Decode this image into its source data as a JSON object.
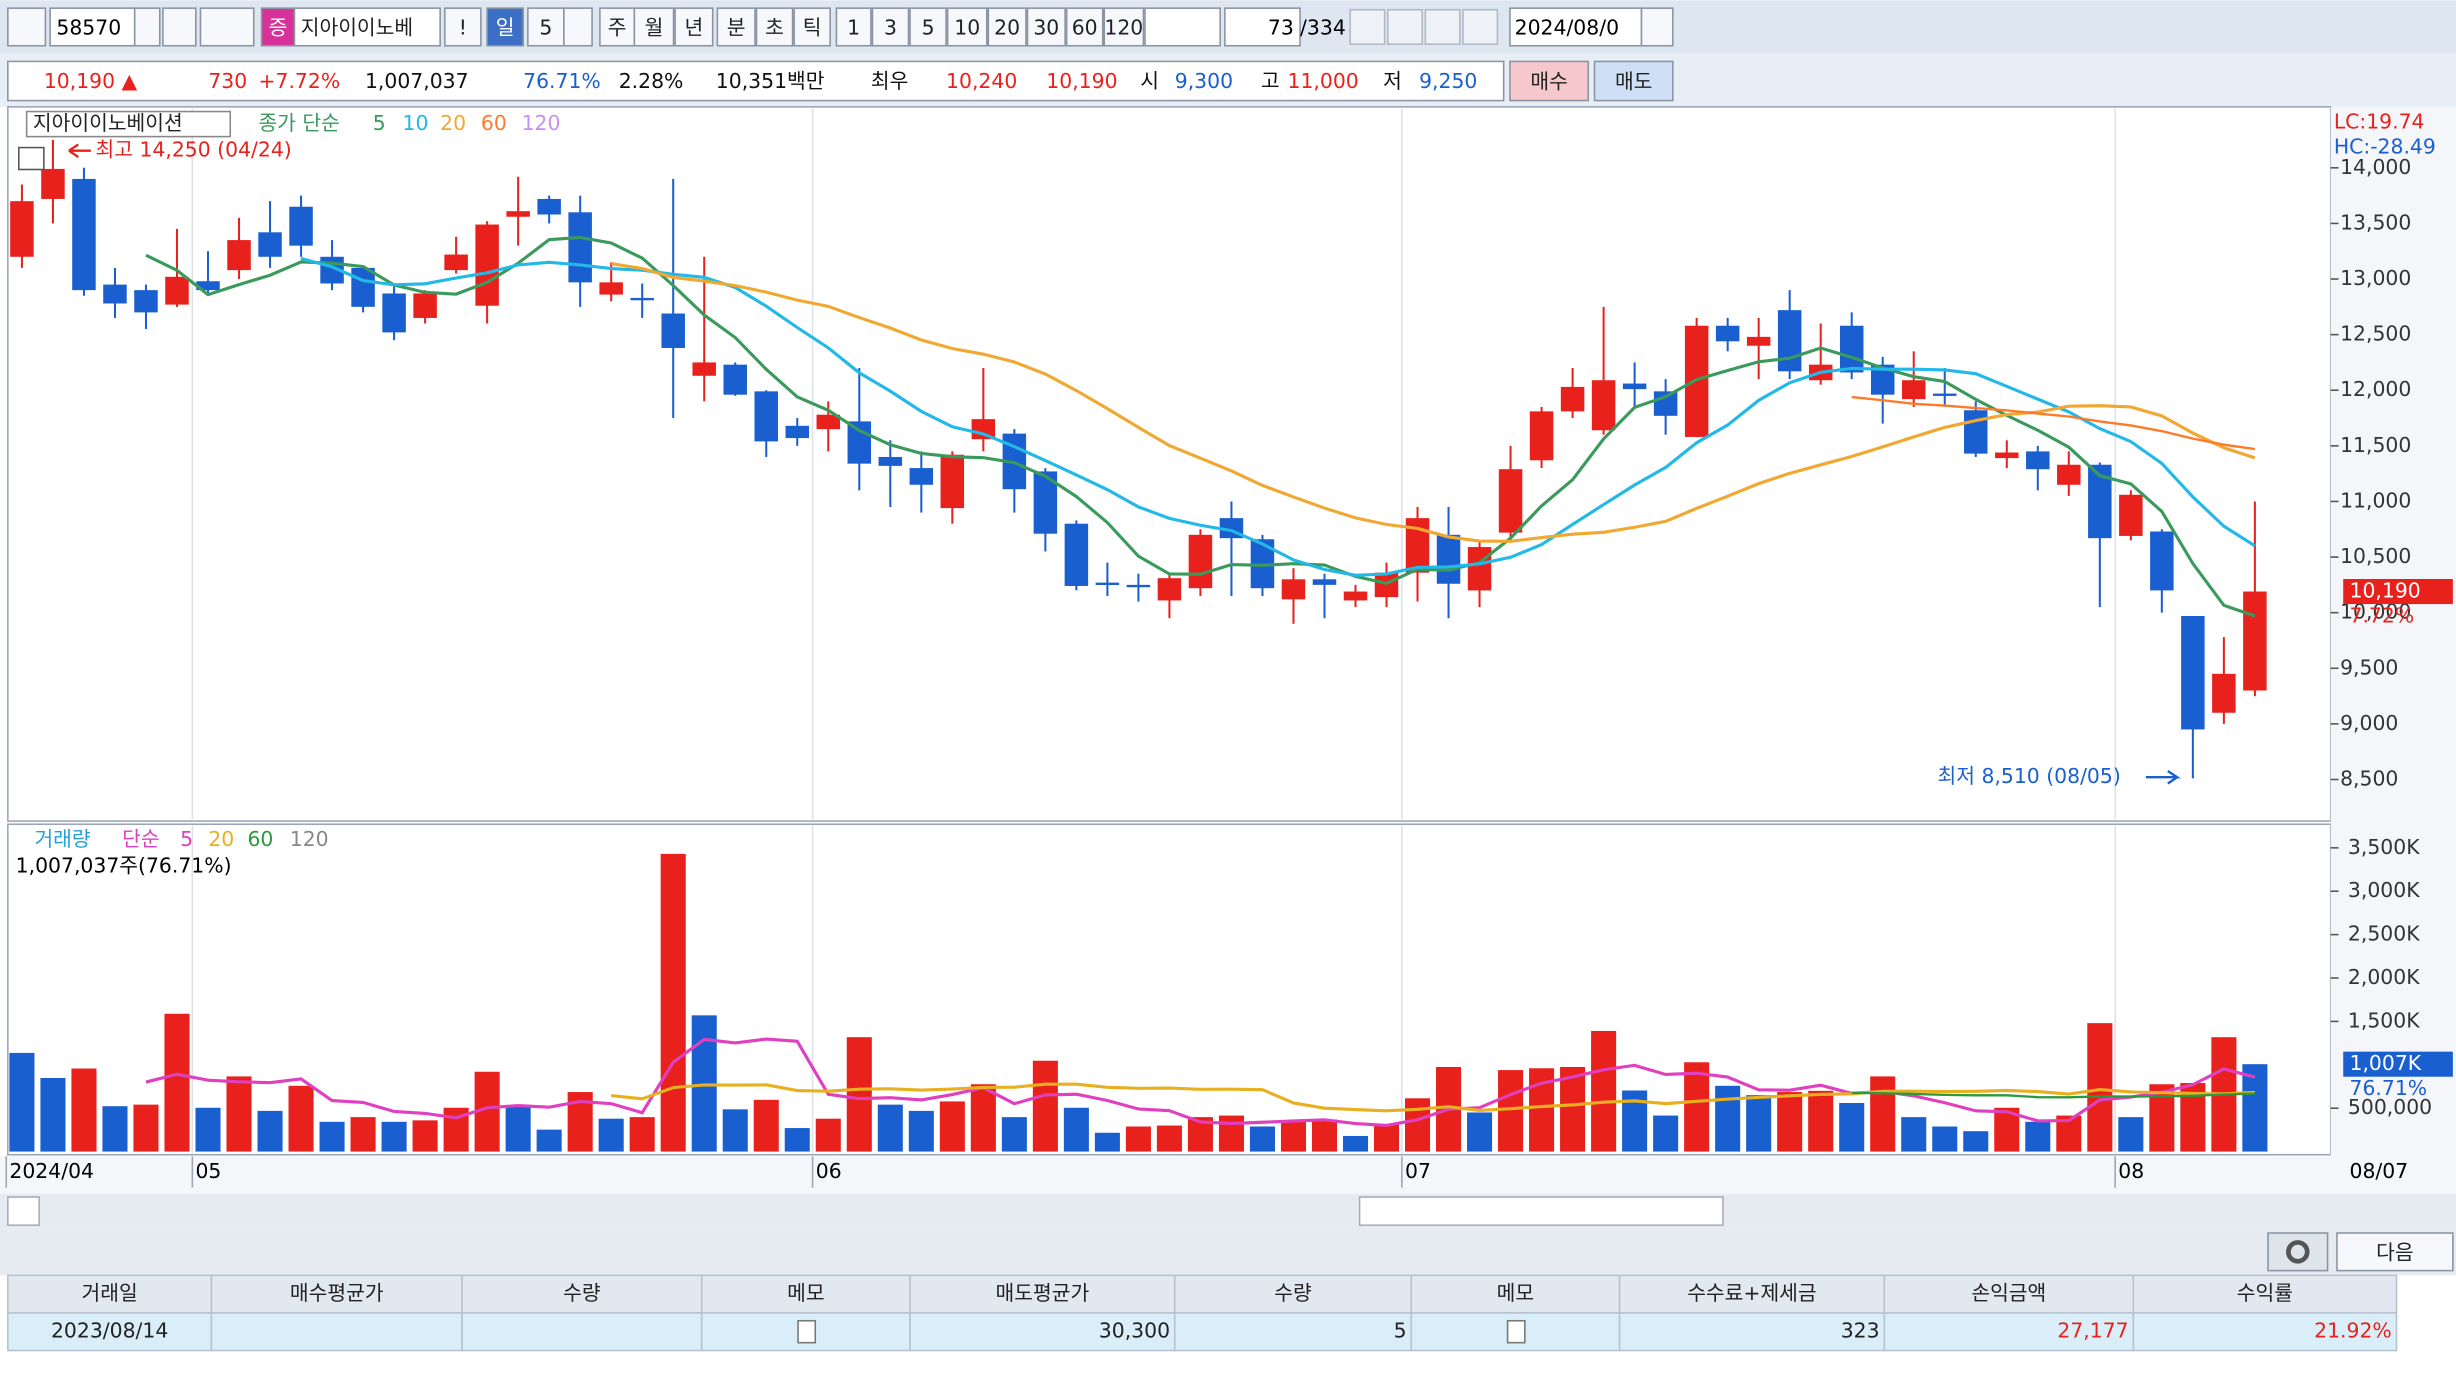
{
  "toolbar": {
    "code": "58570",
    "badge": "증",
    "name": "지아이이노베",
    "buttons": [
      "!",
      "일",
      "5",
      "주",
      "월",
      "년",
      "분",
      "초",
      "틱",
      "1",
      "3",
      "5",
      "10",
      "20",
      "30",
      "60",
      "120"
    ],
    "count": "73",
    "total": "/334",
    "date": "2024/08/0"
  },
  "quote": {
    "price": "10,190 ▲",
    "change": "730",
    "pct": "+7.72%",
    "volume": "1,007,037",
    "ratio": "76.71%",
    "turnover": "2.28%",
    "amount": "10,351백만",
    "best_label": "최우",
    "ask": "10,240",
    "bid": "10,190",
    "open_label": "시",
    "open": "9,300",
    "high_label": "고",
    "high": "11,000",
    "low_label": "저",
    "low": "9,250",
    "buy": "매수",
    "sell": "매도"
  },
  "chart_data": {
    "type": "candlestick",
    "title": "지아이이노베이션",
    "ma_label": "종가 단순",
    "ma": [
      {
        "period": 5,
        "color": "#3a9a5c"
      },
      {
        "period": 10,
        "color": "#22b8e8"
      },
      {
        "period": 20,
        "color": "#f0a830"
      },
      {
        "period": 60,
        "color": "#ff7a28"
      },
      {
        "period": 120,
        "color": "#c890f0"
      }
    ],
    "up_color": "#e8211c",
    "down_color": "#1a5fd0",
    "categories": [
      "2024/04",
      null,
      null,
      null,
      null,
      null,
      "05",
      null,
      null,
      null,
      null,
      null,
      null,
      null,
      null,
      null,
      null,
      null,
      null,
      null,
      null,
      null,
      null,
      null,
      null,
      null,
      "06",
      null,
      null,
      null,
      null,
      null,
      null,
      null,
      null,
      null,
      null,
      null,
      null,
      null,
      null,
      null,
      null,
      null,
      null,
      "07",
      null,
      null,
      null,
      null,
      null,
      null,
      null,
      null,
      null,
      null,
      null,
      null,
      null,
      null,
      null,
      null,
      null,
      null,
      null,
      null,
      null,
      null,
      "08",
      null,
      null,
      null,
      null
    ],
    "open": [
      13200,
      13720,
      13900,
      12950,
      12900,
      12770,
      12980,
      13080,
      13420,
      13650,
      13200,
      13100,
      12870,
      12650,
      13080,
      12760,
      13560,
      13720,
      13600,
      12860,
      12830,
      12690,
      12130,
      12230,
      11990,
      11680,
      11650,
      11720,
      11400,
      11300,
      10940,
      11560,
      11610,
      11270,
      10800,
      10270,
      10250,
      10110,
      10220,
      10850,
      10660,
      10120,
      10300,
      10110,
      10140,
      10360,
      10700,
      10200,
      10720,
      11370,
      11810,
      11640,
      12060,
      11990,
      11580,
      12580,
      12400,
      12720,
      12090,
      12580,
      12230,
      11920,
      11970,
      11820,
      11390,
      11450,
      11150,
      11330,
      10690,
      10730,
      9970,
      9100,
      9300
    ],
    "high": [
      13850,
      14250,
      14000,
      13100,
      12950,
      13450,
      13250,
      13550,
      13700,
      13750,
      13350,
      13100,
      12950,
      12900,
      13380,
      13520,
      13920,
      13750,
      13750,
      13150,
      12960,
      13900,
      13200,
      12250,
      12000,
      11750,
      11900,
      12200,
      11550,
      11450,
      11450,
      12200,
      11650,
      11300,
      10830,
      10450,
      10350,
      10350,
      10750,
      11000,
      10700,
      10400,
      10350,
      10250,
      10450,
      10950,
      10950,
      10650,
      11500,
      11850,
      12200,
      12750,
      12250,
      12100,
      12650,
      12650,
      12650,
      12900,
      12600,
      12700,
      12300,
      12350,
      12200,
      11900,
      11550,
      11500,
      11450,
      11350,
      11100,
      10750,
      9970,
      9780,
      11000
    ],
    "low": [
      13100,
      13500,
      12850,
      12650,
      12550,
      12750,
      12850,
      13000,
      13100,
      13200,
      12900,
      12700,
      12450,
      12600,
      13050,
      12600,
      13300,
      13500,
      12750,
      12800,
      12650,
      11750,
      11900,
      11950,
      11400,
      11500,
      11450,
      11100,
      10950,
      10900,
      10800,
      11450,
      10900,
      10550,
      10200,
      10150,
      10100,
      9950,
      10150,
      10150,
      10150,
      9900,
      9950,
      10050,
      10050,
      10100,
      9950,
      10050,
      10650,
      11300,
      11750,
      11600,
      11850,
      11600,
      11580,
      12350,
      12100,
      12100,
      12050,
      12100,
      11700,
      11850,
      11850,
      11400,
      11300,
      11100,
      11050,
      10050,
      10650,
      10000,
      8510,
      9000,
      9250
    ],
    "close": [
      13700,
      13990,
      12900,
      12780,
      12700,
      13020,
      12900,
      13350,
      13200,
      13300,
      12960,
      12750,
      12520,
      12870,
      13220,
      13490,
      13610,
      13580,
      12970,
      12970,
      12810,
      12380,
      12250,
      11960,
      11540,
      11570,
      11780,
      11340,
      11320,
      11150,
      11420,
      11740,
      11110,
      10710,
      10240,
      10250,
      10230,
      10310,
      10700,
      10670,
      10220,
      10300,
      10250,
      10190,
      10360,
      10850,
      10260,
      10590,
      11290,
      11810,
      12030,
      12090,
      12010,
      11770,
      12580,
      12440,
      12480,
      12170,
      12230,
      12160,
      11960,
      12090,
      11950,
      11430,
      11440,
      11290,
      11330,
      10670,
      11060,
      10200,
      8950,
      9450,
      10190
    ],
    "ylim": [
      8140,
      14520
    ],
    "yticks": [
      {
        "value": 8500,
        "label": "8,500"
      },
      {
        "value": 9000,
        "label": "9,000"
      },
      {
        "value": 9500,
        "label": "9,500"
      },
      {
        "value": 10000,
        "label": "10,000"
      },
      {
        "value": 10500,
        "label": "10,500"
      },
      {
        "value": 11000,
        "label": "11,000"
      },
      {
        "value": 11500,
        "label": "11,500"
      },
      {
        "value": 12000,
        "label": "12,000"
      },
      {
        "value": 12500,
        "label": "12,500"
      },
      {
        "value": 13000,
        "label": "13,000"
      },
      {
        "value": 13500,
        "label": "13,500"
      },
      {
        "value": 14000,
        "label": "14,000"
      }
    ],
    "grid": true,
    "annotations": {
      "high": "최고 14,250 (04/24)",
      "low": "최저 8,510 (08/05)",
      "lc": "LC:19.74",
      "hc": "HC:-28.49",
      "last": "10,190",
      "last_pct": "7.72%",
      "last_date": "08/07"
    },
    "volume": {
      "title": "거래량",
      "ma_label": "단순",
      "ma": [
        {
          "period": 5,
          "color": "#e040c0"
        },
        {
          "period": 20,
          "color": "#e8b020"
        },
        {
          "period": 60,
          "color": "#2a9a3a"
        },
        {
          "period": 120,
          "color": "#888888"
        }
      ],
      "values": [
        1137000,
        848000,
        957000,
        523000,
        541000,
        1588000,
        505000,
        866000,
        469000,
        758000,
        343000,
        397000,
        343000,
        360000,
        505000,
        920000,
        523000,
        253000,
        686000,
        379000,
        397000,
        3430000,
        1570000,
        487000,
        596000,
        271000,
        379000,
        1318000,
        541000,
        469000,
        578000,
        776000,
        397000,
        1047000,
        505000,
        217000,
        289000,
        300000,
        397000,
        415000,
        289000,
        361000,
        370000,
        180000,
        307000,
        614000,
        975000,
        451000,
        939000,
        960000,
        975000,
        1390000,
        704000,
        415000,
        1029000,
        758000,
        650000,
        686000,
        700000,
        560000,
        866000,
        397000,
        289000,
        235000,
        505000,
        343000,
        415000,
        1480000,
        397000,
        776000,
        790000,
        1318000,
        1007037
      ],
      "ylim": [
        0,
        3736000
      ],
      "yticks": [
        {
          "value": 500000,
          "label": "500,000"
        },
        {
          "value": 1500000,
          "label": "1,500K"
        },
        {
          "value": 2000000,
          "label": "2,000K"
        },
        {
          "value": 2500000,
          "label": "2,500K"
        },
        {
          "value": 3000000,
          "label": "3,000K"
        },
        {
          "value": 3500000,
          "label": "3,500K"
        }
      ],
      "annotation": "1,007,037주(76.71%)",
      "last": "1,007K",
      "last_pct": "76.71%"
    }
  },
  "controls": {
    "next": "다음"
  },
  "table": {
    "headers": [
      "거래일",
      "매수평균가",
      "수량",
      "메모",
      "매도평균가",
      "수량",
      "메모",
      "수수료+제세금",
      "손익금액",
      "수익률"
    ],
    "rows": [
      [
        "2023/08/14",
        null,
        null,
        null,
        "30,300",
        "5",
        null,
        "323",
        "27,177",
        "21.92%"
      ]
    ]
  }
}
